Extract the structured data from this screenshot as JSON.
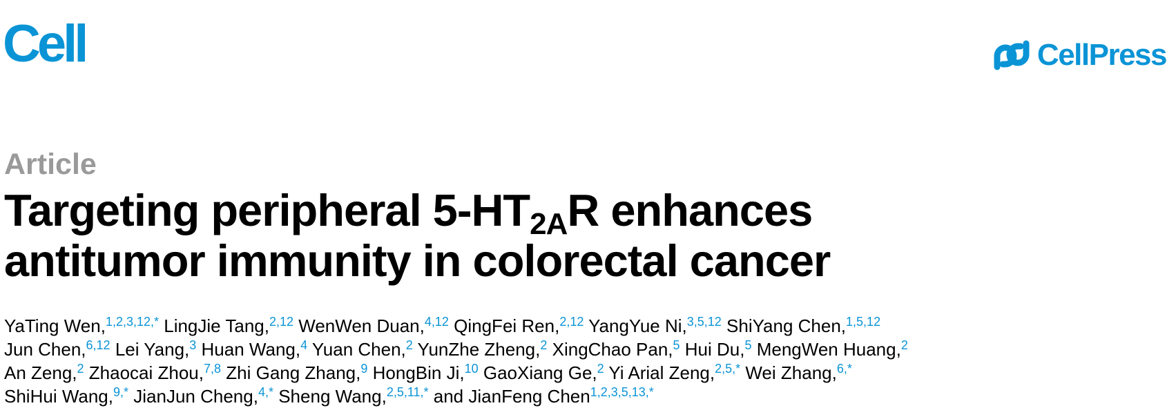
{
  "header": {
    "journal": "Cell",
    "publisher": "CellPress"
  },
  "article_type": "Article",
  "title": {
    "before": "Targeting peripheral 5-HT",
    "subscript": "2A",
    "after": "R enhances",
    "line2": "antitumor immunity in colorectal cancer"
  },
  "authors": {
    "lines": [
      [
        {
          "name": "YaTing Wen,",
          "sup": "1,2,3,12,*"
        },
        {
          "name": "LingJie Tang,",
          "sup": "2,12"
        },
        {
          "name": "WenWen Duan,",
          "sup": "4,12"
        },
        {
          "name": "QingFei Ren,",
          "sup": "2,12"
        },
        {
          "name": "YangYue Ni,",
          "sup": "3,5,12"
        },
        {
          "name": "ShiYang Chen,",
          "sup": "1,5,12"
        }
      ],
      [
        {
          "name": "Jun Chen,",
          "sup": "6,12"
        },
        {
          "name": "Lei Yang,",
          "sup": "3"
        },
        {
          "name": "Huan Wang,",
          "sup": "4"
        },
        {
          "name": "Yuan Chen,",
          "sup": "2"
        },
        {
          "name": "YunZhe Zheng,",
          "sup": "2"
        },
        {
          "name": "XingChao Pan,",
          "sup": "5"
        },
        {
          "name": "Hui Du,",
          "sup": "5"
        },
        {
          "name": "MengWen Huang,",
          "sup": "2"
        }
      ],
      [
        {
          "name": "An Zeng,",
          "sup": "2"
        },
        {
          "name": "Zhaocai Zhou,",
          "sup": "7,8"
        },
        {
          "name": "Zhi Gang Zhang,",
          "sup": "9"
        },
        {
          "name": "HongBin Ji,",
          "sup": "10"
        },
        {
          "name": "GaoXiang Ge,",
          "sup": "2"
        },
        {
          "name": "Yi Arial Zeng,",
          "sup": "2,5,*"
        },
        {
          "name": "Wei Zhang,",
          "sup": "6,*"
        }
      ],
      [
        {
          "name": "ShiHui Wang,",
          "sup": "9,*"
        },
        {
          "name": "JianJun Cheng,",
          "sup": "4,*"
        },
        {
          "name": "Sheng Wang,",
          "sup": "2,5,11,*"
        },
        {
          "name": "and JianFeng Chen",
          "sup": "1,2,3,5,13,*"
        }
      ]
    ]
  }
}
